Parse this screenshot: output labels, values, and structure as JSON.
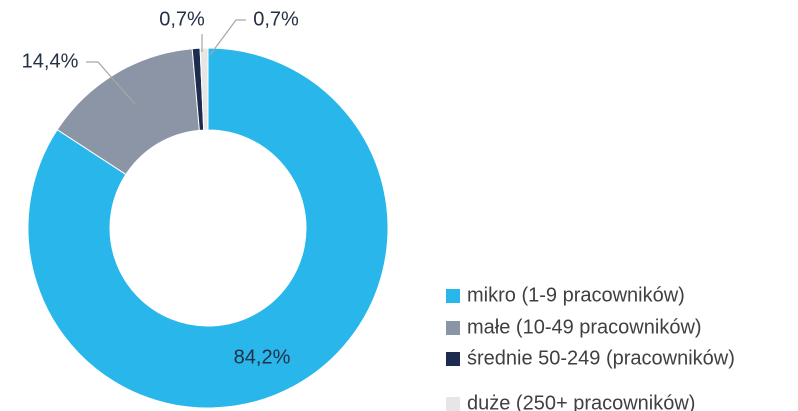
{
  "chart_data": {
    "type": "donut",
    "categories": [
      "mikro (1-9 pracowników)",
      "małe (10-49 pracowników)",
      "średnie 50-249 (pracowników)",
      "duże (250+ pracowników)"
    ],
    "values": [
      84.2,
      14.4,
      0.7,
      0.7
    ],
    "value_labels": [
      "84,2%",
      "14,4%",
      "0,7%",
      "0,7%"
    ],
    "colors": [
      "#29b6ea",
      "#8c95a6",
      "#1d2b4f",
      "#e6e6e6"
    ]
  }
}
